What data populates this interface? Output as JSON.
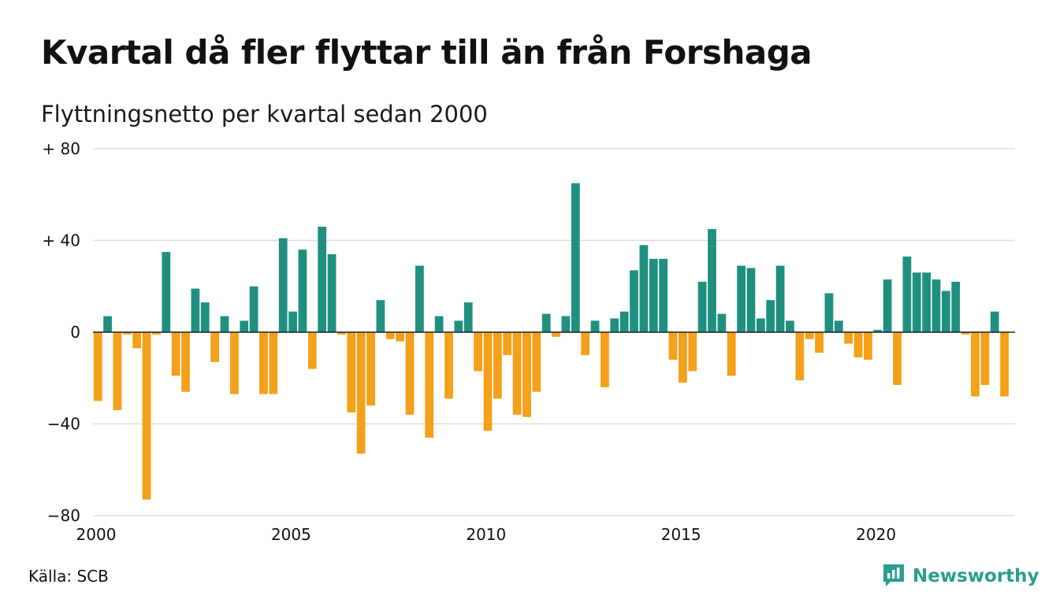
{
  "header": {
    "title": "Kvartal då fler flyttar till än från Forshaga",
    "subtitle": "Flyttningsnetto per kvartal sedan 2000"
  },
  "footer": {
    "source": "Källa: SCB",
    "brand": "Newsworthy"
  },
  "icons": {
    "brand_logo": "newsworthy-logo-icon"
  },
  "colors": {
    "positive": "#1f9080",
    "negative": "#f5a01a",
    "grid": "#dddddd",
    "brand": "#2a9d8f"
  },
  "chart_data": {
    "type": "bar",
    "title": "Kvartal då fler flyttar till än från Forshaga",
    "subtitle": "Flyttningsnetto per kvartal sedan 2000",
    "xlabel": "",
    "ylabel": "",
    "ylim": [
      -80,
      80
    ],
    "yticks": [
      {
        "value": 80,
        "label": "+ 80"
      },
      {
        "value": 40,
        "label": "+ 40"
      },
      {
        "value": 0,
        "label": "0"
      },
      {
        "value": -40,
        "label": "−40"
      },
      {
        "value": -80,
        "label": "−80"
      }
    ],
    "xticks": [
      {
        "year": 2000,
        "label": "2000"
      },
      {
        "year": 2005,
        "label": "2005"
      },
      {
        "year": 2010,
        "label": "2010"
      },
      {
        "year": 2015,
        "label": "2015"
      },
      {
        "year": 2020,
        "label": "2020"
      }
    ],
    "grid": true,
    "legend": "none",
    "start_year": 2000,
    "start_quarter": 1,
    "values": [
      -30,
      7,
      -34,
      -1,
      -7,
      -73,
      -1,
      35,
      -19,
      -26,
      19,
      13,
      -13,
      7,
      -27,
      5,
      20,
      -27,
      -27,
      41,
      9,
      36,
      -16,
      46,
      34,
      -1,
      -35,
      -53,
      -32,
      14,
      -3,
      -4,
      -36,
      29,
      -46,
      7,
      -29,
      5,
      13,
      -17,
      -43,
      -29,
      -10,
      -36,
      -37,
      -26,
      8,
      -2,
      7,
      65,
      -10,
      5,
      -24,
      6,
      9,
      27,
      38,
      32,
      32,
      -12,
      -22,
      -17,
      22,
      45,
      8,
      -19,
      29,
      28,
      6,
      14,
      29,
      5,
      -21,
      -3,
      -9,
      17,
      5,
      -5,
      -11,
      -12,
      1,
      23,
      -23,
      33,
      26,
      26,
      23,
      18,
      22,
      -1,
      -28,
      -23,
      9,
      -28
    ]
  }
}
